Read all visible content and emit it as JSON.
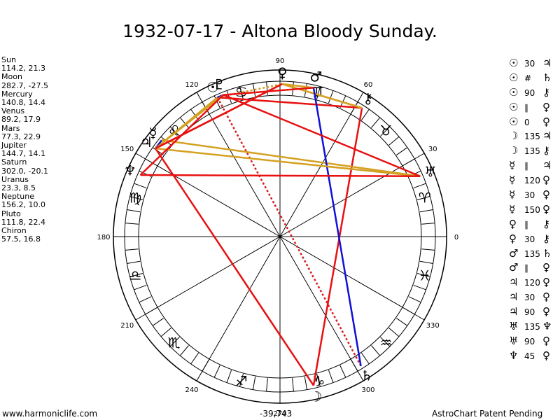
{
  "title": "1932-07-17 - Altona Bloody Sunday.",
  "planets": [
    {
      "name": "Sun",
      "lon": 114.2,
      "lat": 21.3,
      "coords": "114.2, 21.3",
      "glyph": "☉"
    },
    {
      "name": "Moon",
      "lon": 282.7,
      "lat": -27.5,
      "coords": "282.7, -27.5",
      "glyph": "☽"
    },
    {
      "name": "Mercury",
      "lon": 140.8,
      "lat": 14.4,
      "coords": "140.8, 14.4",
      "glyph": "☿"
    },
    {
      "name": "Venus",
      "lon": 89.2,
      "lat": 17.9,
      "coords": "89.2, 17.9",
      "glyph": "♀"
    },
    {
      "name": "Mars",
      "lon": 77.3,
      "lat": 22.9,
      "coords": "77.3, 22.9",
      "glyph": "♂"
    },
    {
      "name": "Jupiter",
      "lon": 144.7,
      "lat": 14.1,
      "coords": "144.7, 14.1",
      "glyph": "♃"
    },
    {
      "name": "Saturn",
      "lon": 302.0,
      "lat": -20.1,
      "coords": "302.0, -20.1",
      "glyph": "♄"
    },
    {
      "name": "Uranus",
      "lon": 23.3,
      "lat": 8.5,
      "coords": "23.3, 8.5",
      "glyph": "♅"
    },
    {
      "name": "Neptune",
      "lon": 156.2,
      "lat": 10.0,
      "coords": "156.2, 10.0",
      "glyph": "♆"
    },
    {
      "name": "Pluto",
      "lon": 111.8,
      "lat": 22.4,
      "coords": "111.8, 22.4",
      "glyph": "♇"
    },
    {
      "name": "Chiron",
      "lon": 57.5,
      "lat": 16.8,
      "coords": "57.5, 16.8",
      "glyph": "⚷"
    }
  ],
  "degree_labels": [
    "0",
    "30",
    "60",
    "90",
    "120",
    "150",
    "180",
    "210",
    "240",
    "270",
    "300",
    "330"
  ],
  "zodiac_glyphs": [
    "♈",
    "♉",
    "♊",
    "♋",
    "♌",
    "♍",
    "♎",
    "♏",
    "♐",
    "♑",
    "♒",
    "♓"
  ],
  "aspects": [
    {
      "p1": "Sun",
      "p2": "Jupiter",
      "angle": "30",
      "g1": "☉",
      "g2": "♃",
      "color": "#d4a020",
      "style": "solid"
    },
    {
      "p1": "Sun",
      "p2": "Saturn",
      "angle": "#",
      "g1": "☉",
      "g2": "♄",
      "color": "#d42020",
      "style": "dotted"
    },
    {
      "p1": "Sun",
      "p2": "Chiron",
      "angle": "90",
      "g1": "☉",
      "g2": "⚷",
      "color": "#e81010",
      "style": "solid"
    },
    {
      "p1": "Sun",
      "p2": "Venus",
      "angle": "∥",
      "g1": "☉",
      "g2": "♀",
      "color": "#d4a020",
      "style": "dotted"
    },
    {
      "p1": "Sun",
      "p2": "Pluto",
      "angle": "0",
      "g1": "☉",
      "g2": "♀",
      "color": "#1010d8",
      "style": "solid"
    },
    {
      "p1": "Moon",
      "p2": "Jupiter",
      "angle": "135",
      "g1": "☽",
      "g2": "♃",
      "color": "#e81010",
      "style": "solid"
    },
    {
      "p1": "Moon",
      "p2": "Chiron",
      "angle": "135",
      "g1": "☽",
      "g2": "⚷",
      "color": "#e81010",
      "style": "solid"
    },
    {
      "p1": "Mercury",
      "p2": "Jupiter",
      "angle": "∥",
      "g1": "☿",
      "g2": "♃",
      "color": "#1010d8",
      "style": "solid"
    },
    {
      "p1": "Mercury",
      "p2": "Uranus",
      "angle": "120",
      "g1": "☿",
      "g2": "♀",
      "color": "#d4a020",
      "style": "solid"
    },
    {
      "p1": "Venus",
      "p2": "Mars",
      "angle": "30",
      "g1": "☿",
      "g2": "♀",
      "color": "#d4a020",
      "style": "solid"
    },
    {
      "p1": "Venus",
      "p2": "Jupiter",
      "angle": "150",
      "g1": "☿",
      "g2": "♀",
      "color": "#e81010",
      "style": "solid"
    },
    {
      "p1": "Venus",
      "p2": "Chiron",
      "angle": "∥",
      "g1": "♀",
      "g2": "⚷",
      "color": "#d4a020",
      "style": "solid"
    },
    {
      "p1": "Venus",
      "p2": "Chiron",
      "angle": "30",
      "g1": "♀",
      "g2": "⚷",
      "color": "#d4a020",
      "style": "solid"
    },
    {
      "p1": "Mars",
      "p2": "Saturn",
      "angle": "135",
      "g1": "♂",
      "g2": "♄",
      "color": "#1010d8",
      "style": "solid"
    },
    {
      "p1": "Mars",
      "p2": "Pluto",
      "angle": "∥",
      "g1": "♂",
      "g2": "♀",
      "color": "#e81010",
      "style": "solid"
    },
    {
      "p1": "Jupiter",
      "p2": "Uranus",
      "angle": "120",
      "g1": "♃",
      "g2": "♀",
      "color": "#d4a020",
      "style": "solid"
    },
    {
      "p1": "Jupiter",
      "p2": "Pluto",
      "angle": "30",
      "g1": "♃",
      "g2": "♀",
      "color": "#d4a020",
      "style": "solid"
    },
    {
      "p1": "Jupiter",
      "p2": "Venus",
      "angle": "90",
      "g1": "♃",
      "g2": "♀",
      "color": "#e81010",
      "style": "solid"
    },
    {
      "p1": "Uranus",
      "p2": "Neptune",
      "angle": "135",
      "g1": "♅",
      "g2": "♆",
      "color": "#e81010",
      "style": "solid"
    },
    {
      "p1": "Uranus",
      "p2": "Pluto",
      "angle": "90",
      "g1": "♅",
      "g2": "♀",
      "color": "#e81010",
      "style": "solid"
    },
    {
      "p1": "Neptune",
      "p2": "Pluto",
      "angle": "45",
      "g1": "♆",
      "g2": "♀",
      "color": "#e81010",
      "style": "solid"
    }
  ],
  "footer": {
    "left": "www.harmoniclife.com",
    "center": "-39,743",
    "right": "AstroChart Patent Pending"
  }
}
